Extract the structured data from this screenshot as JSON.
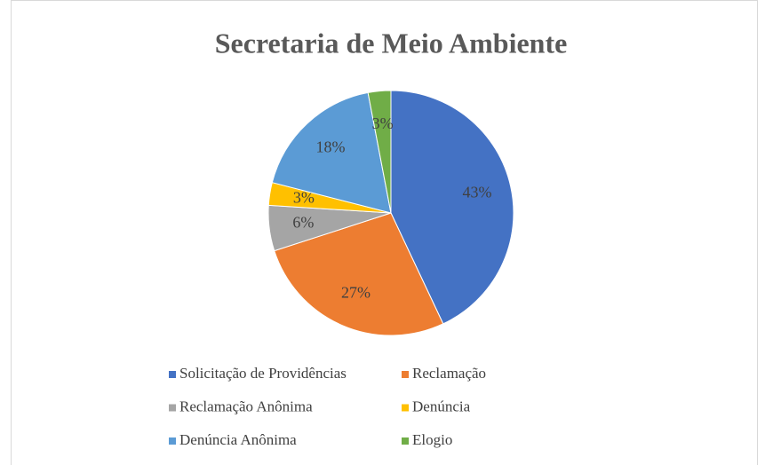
{
  "chart_data": {
    "type": "pie",
    "title": "Secretaria de Meio Ambiente",
    "categories": [
      "Solicitação de Providências",
      "Reclamação",
      "Reclamação Anônima",
      "Denúncia",
      "Denúncia Anônima",
      "Elogio"
    ],
    "values": [
      43,
      27,
      6,
      3,
      18,
      3
    ],
    "value_labels": [
      "43%",
      "27%",
      "6%",
      "3%",
      "18%",
      "3%"
    ],
    "colors": [
      "#4472c4",
      "#ed7d31",
      "#a5a5a5",
      "#ffc000",
      "#5b9bd5",
      "#70ad47"
    ],
    "legend": "bottom"
  }
}
